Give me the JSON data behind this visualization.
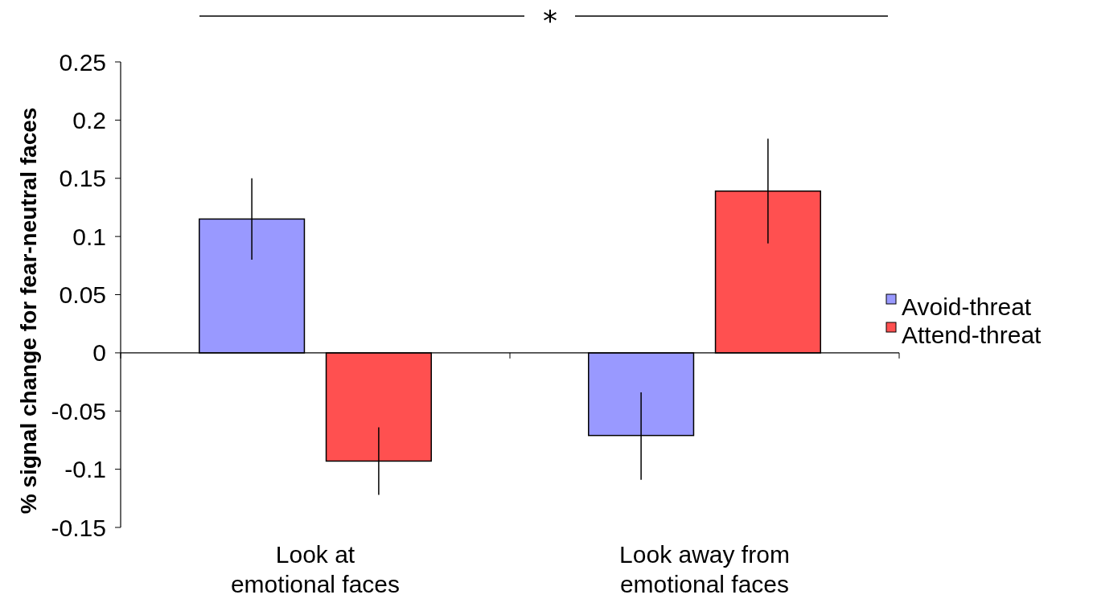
{
  "chart_data": {
    "type": "bar",
    "ylabel": "% signal change for fear-neutral faces",
    "categories": [
      "Look at\nemotional faces",
      "Look away from\nemotional faces"
    ],
    "series": [
      {
        "name": "Avoid-threat",
        "color": "#9999ff",
        "values": [
          0.115,
          -0.071
        ],
        "errors": [
          [
            0.08,
            0.15
          ],
          [
            -0.109,
            -0.034
          ]
        ]
      },
      {
        "name": "Attend-threat",
        "color": "#ff5050",
        "values": [
          -0.093,
          0.139
        ],
        "errors": [
          [
            -0.122,
            -0.064
          ],
          [
            0.094,
            0.184
          ]
        ]
      }
    ],
    "ylim": [
      -0.15,
      0.25
    ],
    "yticks": [
      {
        "value": -0.15,
        "label": "-0.15"
      },
      {
        "value": -0.1,
        "label": "-0.1"
      },
      {
        "value": -0.05,
        "label": "-0.05"
      },
      0,
      0.05,
      0.1,
      0.15,
      0.2,
      0.25
    ],
    "annotations": [
      "*"
    ],
    "legend": "right"
  }
}
